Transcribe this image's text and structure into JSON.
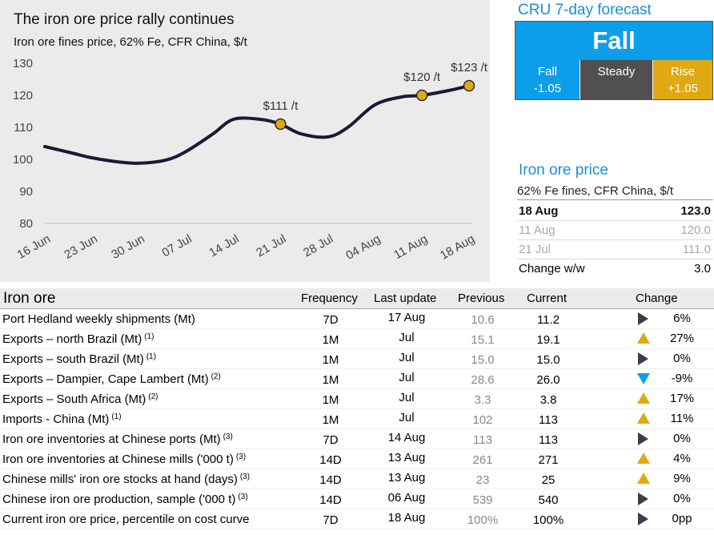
{
  "chart": {
    "title": "The iron ore price rally continues",
    "subtitle": "Iron ore fines price, 62% Fe, CFR China, $/t"
  },
  "chart_data": {
    "type": "line",
    "title": "The iron ore price rally continues",
    "subtitle": "Iron ore fines price, 62% Fe, CFR China, $/t",
    "x_ticks": [
      "16 Jun",
      "23 Jun",
      "30 Jun",
      "07 Jul",
      "14 Jul",
      "21 Jul",
      "28 Jul",
      "04 Aug",
      "11 Aug",
      "18 Aug"
    ],
    "y_ticks": [
      80,
      90,
      100,
      110,
      120,
      130
    ],
    "ylim": [
      80,
      130
    ],
    "grid": "baseline only",
    "line_color": "#1c1836",
    "marker_color": "#e0a912",
    "series": [
      {
        "x": [
          "16 Jun",
          "20 Jun",
          "23 Jun",
          "27 Jun",
          "30 Jun",
          "04 Jul",
          "07 Jul",
          "11 Jul",
          "14 Jul",
          "18 Jul",
          "21 Jul",
          "24 Jul",
          "28 Jul",
          "31 Jul",
          "04 Aug",
          "08 Aug",
          "11 Aug",
          "15 Aug",
          "18 Aug"
        ],
        "values": [
          104,
          102,
          100.5,
          99.2,
          98.8,
          99.8,
          102.5,
          108,
          112.5,
          112.5,
          111,
          108,
          107,
          110,
          117,
          119.5,
          120,
          121.5,
          123
        ]
      }
    ],
    "annotations": [
      {
        "x": "21 Jul",
        "y": 111,
        "label": "$111 /t"
      },
      {
        "x": "11 Aug",
        "y": 120,
        "label": "$120 /t"
      },
      {
        "x": "18 Aug",
        "y": 123,
        "label": "$123 /t"
      }
    ]
  },
  "forecast": {
    "title": "CRU 7-day forecast",
    "direction": "Fall",
    "fall_label": "Fall",
    "fall_value": "-1.05",
    "steady_label": "Steady",
    "rise_label": "Rise",
    "rise_value": "+1.05",
    "colors": {
      "fall": "#0d9eea",
      "steady": "#505050",
      "rise": "#e0a912"
    }
  },
  "price": {
    "title": "Iron ore price",
    "subtitle": "62% Fe fines, CFR China, $/t",
    "rows": [
      {
        "date": "18 Aug",
        "value": "123.0"
      },
      {
        "date": "11 Aug",
        "value": "120.0"
      },
      {
        "date": "21 Jul",
        "value": "111.0"
      },
      {
        "date": "Change w/w",
        "value": "3.0"
      }
    ]
  },
  "table": {
    "title": "Iron ore",
    "headers": {
      "frequency": "Frequency",
      "last_update": "Last update",
      "previous": "Previous",
      "current": "Current",
      "change": "Change"
    },
    "rows": [
      {
        "name": "Port Hedland weekly shipments (Mt)",
        "note": "",
        "frequency": "7D",
        "last_update": "17 Aug",
        "previous": "10.6",
        "current": "11.2",
        "trend": "right",
        "change": "6%"
      },
      {
        "name": "Exports – north Brazil (Mt)",
        "note": "(1)",
        "frequency": "1M",
        "last_update": "Jul",
        "previous": "15.1",
        "current": "19.1",
        "trend": "up",
        "change": "27%"
      },
      {
        "name": "Exports – south Brazil (Mt)",
        "note": "(1)",
        "frequency": "1M",
        "last_update": "Jul",
        "previous": "15.0",
        "current": "15.0",
        "trend": "right",
        "change": "0%"
      },
      {
        "name": "Exports – Dampier, Cape Lambert (Mt)",
        "note": "(2)",
        "frequency": "1M",
        "last_update": "Jul",
        "previous": "28.6",
        "current": "26.0",
        "trend": "down",
        "change": "-9%"
      },
      {
        "name": "Exports – South Africa (Mt)",
        "note": "(2)",
        "frequency": "1M",
        "last_update": "Jul",
        "previous": "3.3",
        "current": "3.8",
        "trend": "up",
        "change": "17%"
      },
      {
        "name": "Imports - China (Mt)",
        "note": "(1)",
        "frequency": "1M",
        "last_update": "Jul",
        "previous": "102",
        "current": "113",
        "trend": "up",
        "change": "11%"
      },
      {
        "name": "Iron ore inventories at Chinese ports (Mt)",
        "note": "(3)",
        "frequency": "7D",
        "last_update": "14 Aug",
        "previous": "113",
        "current": "113",
        "trend": "right",
        "change": "0%"
      },
      {
        "name": "Iron ore inventories at Chinese mills ('000 t)",
        "note": "(3)",
        "frequency": "14D",
        "last_update": "13 Aug",
        "previous": "261",
        "current": "271",
        "trend": "up",
        "change": "4%"
      },
      {
        "name": "Chinese mills' iron ore stocks at hand (days)",
        "note": "(3)",
        "frequency": "14D",
        "last_update": "13 Aug",
        "previous": "23",
        "current": "25",
        "trend": "up",
        "change": "9%"
      },
      {
        "name": "Chinese iron ore production, sample ('000 t)",
        "note": "(3)",
        "frequency": "14D",
        "last_update": "06 Aug",
        "previous": "539",
        "current": "540",
        "trend": "right",
        "change": "0%"
      },
      {
        "name": "Current iron ore price, percentile on cost curve",
        "note": "",
        "frequency": "7D",
        "last_update": "18 Aug",
        "previous": "100%",
        "current": "100%",
        "trend": "right",
        "change": "0pp"
      }
    ]
  }
}
